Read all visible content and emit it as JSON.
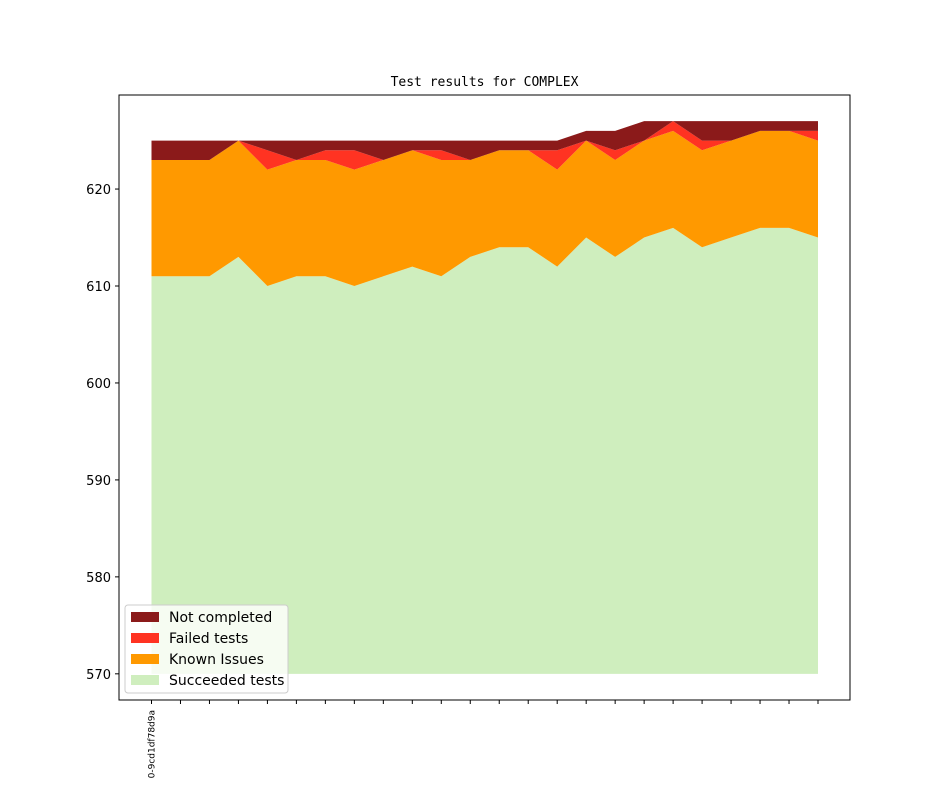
{
  "chart_data": {
    "type": "area",
    "title": "Test results for COMPLEX",
    "xlabel": "",
    "ylabel": "",
    "ylim": [
      567.3,
      629.7
    ],
    "yticks": [
      570,
      580,
      590,
      600,
      610,
      620
    ],
    "x_labels": [
      "0-9cd1df78d9a",
      "",
      "",
      "",
      "",
      "",
      "",
      "",
      "",
      "",
      "",
      "",
      "",
      "",
      "",
      "",
      "",
      "",
      "",
      "",
      "",
      "",
      "",
      ""
    ],
    "baseline": 570,
    "legend_position": "lower-left",
    "series": [
      {
        "name": "Succeeded tests",
        "color": "#cfeebe",
        "values": [
          611,
          611,
          611,
          613,
          610,
          611,
          611,
          610,
          611,
          612,
          611,
          613,
          614,
          614,
          612,
          615,
          613,
          615,
          616,
          614,
          615,
          616,
          616,
          615
        ]
      },
      {
        "name": "Known Issues",
        "color": "#ff9900",
        "values": [
          12,
          12,
          12,
          12,
          12,
          12,
          12,
          12,
          12,
          12,
          12,
          10,
          10,
          10,
          10,
          10,
          10,
          10,
          10,
          10,
          10,
          10,
          10,
          10
        ]
      },
      {
        "name": "Failed tests",
        "color": "#ff3322",
        "values": [
          0,
          0,
          0,
          0,
          2,
          0,
          1,
          2,
          0,
          0,
          1,
          0,
          0,
          0,
          2,
          0,
          1,
          0,
          1,
          1,
          0,
          0,
          0,
          1
        ]
      },
      {
        "name": "Not completed",
        "color": "#8b1a1a",
        "values": [
          2,
          2,
          2,
          0,
          1,
          2,
          1,
          1,
          2,
          1,
          1,
          2,
          1,
          1,
          1,
          1,
          2,
          2,
          0,
          2,
          2,
          1,
          1,
          1
        ]
      }
    ]
  }
}
